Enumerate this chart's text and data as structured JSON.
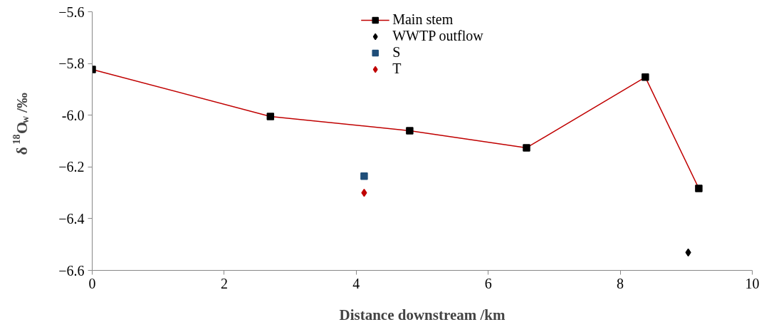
{
  "chart_data": {
    "type": "line",
    "xlabel": "Distance downstream /km",
    "ylabel": "δ$^{18}$O$_{w}$ /‰",
    "xlim": [
      0,
      10
    ],
    "xticks": [
      0,
      2,
      4,
      6,
      8,
      10
    ],
    "ylim": [
      -6.6,
      -5.6
    ],
    "yticks": [
      -6.6,
      -6.4,
      -6.2,
      {
        "value": -6.0,
        "label": "-6.0"
      },
      -5.8,
      -5.6
    ],
    "grid": false,
    "legend": "top",
    "line_style": "solid",
    "series": [
      {
        "name": "Main stem",
        "marker": "square",
        "color": "#c00000",
        "x": [
          0,
          2.7,
          4.81,
          6.58,
          8.38,
          9.19
        ],
        "values": [
          -5.823,
          -6.005,
          -6.06,
          -6.126,
          -5.853,
          -6.283
        ]
      },
      {
        "name": "WWTP outflow",
        "type": "scatter",
        "marker": "diamond",
        "color": "#000000",
        "x": [
          9.03
        ],
        "values": [
          -6.531
        ]
      },
      {
        "name": "S",
        "type": "scatter",
        "marker": "square",
        "color": "#1f4e79",
        "x": [
          4.12
        ],
        "values": [
          -6.236
        ]
      },
      {
        "name": "T",
        "type": "scatter",
        "marker": "diamond",
        "color": "#c00000",
        "x": [
          4.12
        ],
        "values": [
          -6.3
        ]
      }
    ]
  }
}
